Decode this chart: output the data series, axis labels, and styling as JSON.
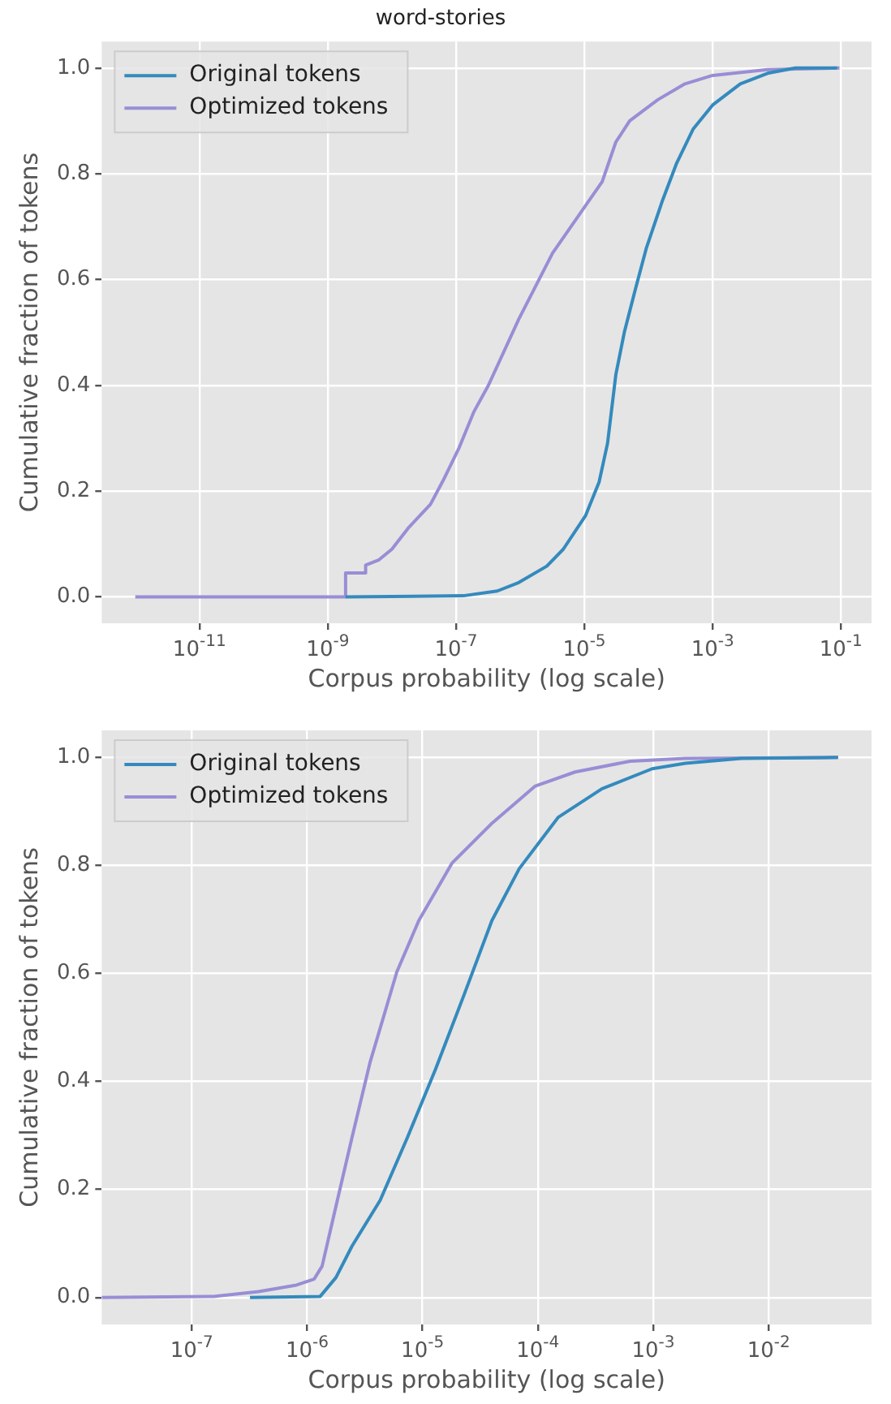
{
  "chart_data": [
    {
      "type": "line",
      "title": "word-stories",
      "xlabel": "Corpus probability (log scale)",
      "ylabel": "Cumulative fraction of tokens",
      "log": "x",
      "grid": true,
      "legend": "top left",
      "marker": "none",
      "line_style": "solid",
      "xlim": [
        3e-13,
        0.3
      ],
      "ylim": [
        -0.05,
        1.05
      ],
      "xticks": [
        {
          "value": 1e-11,
          "label": "10$^{-11}$"
        },
        {
          "value": 1e-09,
          "label": "10$^{-9}$"
        },
        {
          "value": 1e-07,
          "label": "10$^{-7}$"
        },
        {
          "value": 1e-05,
          "label": "10$^{-5}$"
        },
        {
          "value": 0.001,
          "label": "10$^{-3}$"
        },
        {
          "value": 0.1,
          "label": "10$^{-1}$"
        }
      ],
      "yticks": [
        {
          "value": 0,
          "label": "0.0"
        },
        {
          "value": 0.2,
          "label": "0.2"
        },
        {
          "value": 0.4,
          "label": "0.4"
        },
        {
          "value": 0.6,
          "label": "0.6"
        },
        {
          "value": 0.8,
          "label": "0.8"
        },
        {
          "value": 1,
          "label": "1.0"
        }
      ],
      "series": [
        {
          "name": "Original tokens",
          "color": "#348abd",
          "x": [
            1.9e-09,
            1.3e-07,
            4.4e-07,
            9.5e-07,
            2.6e-06,
            4.7e-06,
            1.05e-05,
            1.7e-05,
            2.3e-05,
            3.1e-05,
            4.2e-05,
            6.2e-05,
            9.3e-05,
            0.000166,
            0.000275,
            0.0005,
            0.001,
            0.0027,
            0.0072,
            0.0195,
            0.087
          ],
          "values": [
            0,
            0.002,
            0.011,
            0.027,
            0.058,
            0.09,
            0.154,
            0.217,
            0.29,
            0.42,
            0.5,
            0.58,
            0.66,
            0.75,
            0.82,
            0.885,
            0.93,
            0.97,
            0.99,
            1.0,
            1.0
          ]
        },
        {
          "name": "Optimized tokens",
          "color": "#988ed5",
          "x": [
            1e-12,
            1.9e-09,
            1.9e-09,
            3.9e-09,
            3.9e-09,
            6.3e-09,
            1e-08,
            1.8e-08,
            4e-08,
            6.3e-08,
            1.1e-07,
            1.9e-07,
            3.2e-07,
            9.5e-07,
            3.2e-06,
            1.05e-05,
            1.9e-05,
            3.1e-05,
            5.1e-05,
            0.00014,
            0.00037,
            0.001,
            0.0072,
            0.095
          ],
          "values": [
            0,
            0,
            0.045,
            0.045,
            0.06,
            0.07,
            0.09,
            0.13,
            0.175,
            0.22,
            0.28,
            0.35,
            0.4,
            0.525,
            0.65,
            0.74,
            0.785,
            0.86,
            0.9,
            0.94,
            0.97,
            0.986,
            0.997,
            1.0
          ]
        }
      ]
    },
    {
      "type": "line",
      "xlabel": "Corpus probability (log scale)",
      "ylabel": "Cumulative fraction of tokens",
      "log": "x",
      "grid": true,
      "legend": "top left",
      "marker": "none",
      "line_style": "solid",
      "xlim": [
        1.66e-08,
        0.078
      ],
      "ylim": [
        -0.05,
        1.05
      ],
      "xticks": [
        {
          "value": 1e-07,
          "label": "10$^{-7}$"
        },
        {
          "value": 1e-06,
          "label": "10$^{-6}$"
        },
        {
          "value": 1e-05,
          "label": "10$^{-5}$"
        },
        {
          "value": 0.0001,
          "label": "10$^{-4}$"
        },
        {
          "value": 0.001,
          "label": "10$^{-3}$"
        },
        {
          "value": 0.01,
          "label": "10$^{-2}$"
        }
      ],
      "yticks": [
        {
          "value": 0,
          "label": "0.0"
        },
        {
          "value": 0.2,
          "label": "0.2"
        },
        {
          "value": 0.4,
          "label": "0.4"
        },
        {
          "value": 0.6,
          "label": "0.6"
        },
        {
          "value": 0.8,
          "label": "0.8"
        },
        {
          "value": 1,
          "label": "1.0"
        }
      ],
      "series": [
        {
          "name": "Original tokens",
          "color": "#348abd",
          "x": [
            3.2e-07,
            1.3e-06,
            1.78e-06,
            2.45e-06,
            4.3e-06,
            7.4e-06,
            1.3e-05,
            2.3e-05,
            4e-05,
            6.9e-05,
            0.00015,
            0.00036,
            0.00098,
            0.0019,
            0.0058,
            0.04
          ],
          "values": [
            0,
            0.002,
            0.037,
            0.095,
            0.18,
            0.296,
            0.423,
            0.561,
            0.698,
            0.794,
            0.889,
            0.942,
            0.979,
            0.989,
            0.998,
            1.0
          ]
        },
        {
          "name": "Optimized tokens",
          "color": "#988ed5",
          "x": [
            1.66e-08,
            1.55e-07,
            3.8e-07,
            8.1e-07,
            1.15e-06,
            1.35e-06,
            1.78e-06,
            2.45e-06,
            3.5e-06,
            6e-06,
            9.3e-06,
            1.8e-05,
            4e-05,
            9.5e-05,
            0.00021,
            0.00063,
            0.0019,
            0.04
          ],
          "values": [
            0,
            0.002,
            0.011,
            0.023,
            0.034,
            0.058,
            0.169,
            0.296,
            0.434,
            0.603,
            0.698,
            0.804,
            0.878,
            0.947,
            0.973,
            0.993,
            0.998,
            1.0
          ]
        }
      ]
    }
  ]
}
